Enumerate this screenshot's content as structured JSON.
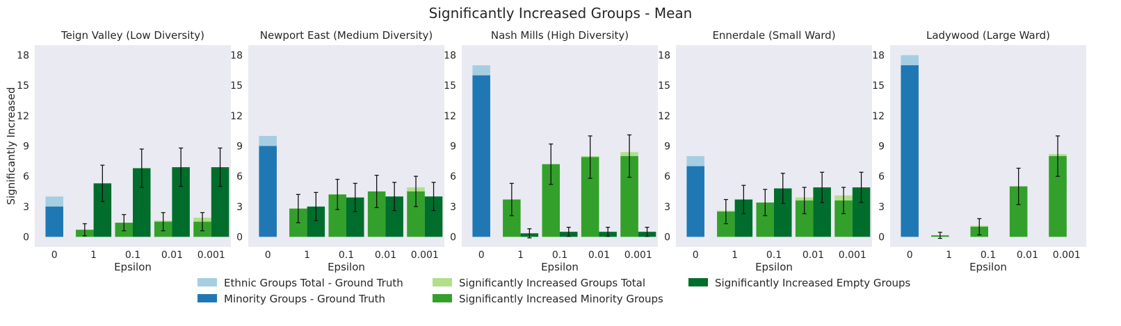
{
  "title": "Significantly Increased Groups  - Mean",
  "legend": {
    "placement": "bottom",
    "items": [
      {
        "label": "Ethnic Groups Total - Ground Truth",
        "color": "#a6cee3"
      },
      {
        "label": "Minority Groups - Ground Truth",
        "color": "#1f78b4"
      },
      {
        "label": "Significantly Increased Groups Total",
        "color": "#b2df8a"
      },
      {
        "label": "Significantly Increased Minority Groups",
        "color": "#33a02c"
      },
      {
        "label": "Significantly Increased Empty Groups",
        "color": "#006d2c"
      }
    ]
  },
  "chart_data": [
    {
      "type": "bar",
      "title": "Teign Valley (Low Diversity)",
      "xlabel": "Epsilon",
      "ylabel": "Significantly Increased",
      "ylim": [
        -1,
        19
      ],
      "yticks": [
        "0",
        "3",
        "6",
        "9",
        "12",
        "15",
        "18"
      ],
      "categories": [
        "0",
        "1",
        "0.1",
        "0.01",
        "0.001"
      ],
      "ground_truth": {
        "total": 4,
        "minority": 3
      },
      "groups": [
        {
          "total": 0.7,
          "minority": 0.7,
          "minority_err": 0.6,
          "empty": 5.3,
          "empty_err": 1.8
        },
        {
          "total": 1.4,
          "minority": 1.4,
          "minority_err": 0.8,
          "empty": 6.8,
          "empty_err": 1.9
        },
        {
          "total": 1.6,
          "minority": 1.5,
          "minority_err": 0.9,
          "empty": 6.9,
          "empty_err": 1.9
        },
        {
          "total": 1.9,
          "minority": 1.5,
          "minority_err": 0.9,
          "empty": 6.9,
          "empty_err": 1.9
        }
      ],
      "grid": false
    },
    {
      "type": "bar",
      "title": "Newport East (Medium Diversity)",
      "xlabel": "Epsilon",
      "ylabel": "",
      "ylim": [
        -1,
        19
      ],
      "yticks": [
        "0",
        "3",
        "6",
        "9",
        "12",
        "15",
        "18"
      ],
      "categories": [
        "0",
        "1",
        "0.1",
        "0.01",
        "0.001"
      ],
      "ground_truth": {
        "total": 10,
        "minority": 9
      },
      "groups": [
        {
          "total": 2.8,
          "minority": 2.8,
          "minority_err": 1.4,
          "empty": 3.0,
          "empty_err": 1.4
        },
        {
          "total": 4.2,
          "minority": 4.2,
          "minority_err": 1.5,
          "empty": 3.9,
          "empty_err": 1.4
        },
        {
          "total": 4.5,
          "minority": 4.5,
          "minority_err": 1.6,
          "empty": 4.0,
          "empty_err": 1.4
        },
        {
          "total": 4.9,
          "minority": 4.5,
          "minority_err": 1.5,
          "empty": 4.0,
          "empty_err": 1.4
        }
      ],
      "grid": false
    },
    {
      "type": "bar",
      "title": "Nash Mills (High Diversity)",
      "xlabel": "Epsilon",
      "ylabel": "",
      "ylim": [
        -1,
        19
      ],
      "yticks": [
        "0",
        "3",
        "6",
        "9",
        "12",
        "15",
        "18"
      ],
      "categories": [
        "0",
        "1",
        "0.1",
        "0.01",
        "0.001"
      ],
      "ground_truth": {
        "total": 17,
        "minority": 16
      },
      "groups": [
        {
          "total": 3.7,
          "minority": 3.7,
          "minority_err": 1.6,
          "empty": 0.35,
          "empty_err": 0.45
        },
        {
          "total": 7.2,
          "minority": 7.2,
          "minority_err": 2.0,
          "empty": 0.5,
          "empty_err": 0.45
        },
        {
          "total": 8.0,
          "minority": 7.9,
          "minority_err": 2.1,
          "empty": 0.5,
          "empty_err": 0.45
        },
        {
          "total": 8.4,
          "minority": 8.0,
          "minority_err": 2.1,
          "empty": 0.5,
          "empty_err": 0.45
        }
      ],
      "grid": false
    },
    {
      "type": "bar",
      "title": "Ennerdale (Small Ward)",
      "xlabel": "Epsilon",
      "ylabel": "",
      "ylim": [
        -1,
        19
      ],
      "yticks": [
        "0",
        "3",
        "6",
        "9",
        "12",
        "15",
        "18"
      ],
      "categories": [
        "0",
        "1",
        "0.1",
        "0.01",
        "0.001"
      ],
      "ground_truth": {
        "total": 8,
        "minority": 7
      },
      "groups": [
        {
          "total": 2.6,
          "minority": 2.5,
          "minority_err": 1.2,
          "empty": 3.7,
          "empty_err": 1.4
        },
        {
          "total": 3.4,
          "minority": 3.4,
          "minority_err": 1.3,
          "empty": 4.8,
          "empty_err": 1.5
        },
        {
          "total": 3.9,
          "minority": 3.6,
          "minority_err": 1.3,
          "empty": 4.9,
          "empty_err": 1.5
        },
        {
          "total": 4.1,
          "minority": 3.6,
          "minority_err": 1.3,
          "empty": 4.9,
          "empty_err": 1.5
        }
      ],
      "grid": false
    },
    {
      "type": "bar",
      "title": "Ladywood (Large Ward)",
      "xlabel": "Epsilon",
      "ylabel": "",
      "ylim": [
        -1,
        19
      ],
      "yticks": [
        "0",
        "3",
        "6",
        "9",
        "12",
        "15",
        "18"
      ],
      "categories": [
        "0",
        "1",
        "0.1",
        "0.01",
        "0.001"
      ],
      "ground_truth": {
        "total": 18,
        "minority": 17
      },
      "groups": [
        {
          "total": 0.15,
          "minority": 0.15,
          "minority_err": 0.3,
          "empty": 0,
          "empty_err": 0
        },
        {
          "total": 1.1,
          "minority": 1.0,
          "minority_err": 0.8,
          "empty": 0,
          "empty_err": 0
        },
        {
          "total": 5.0,
          "minority": 5.0,
          "minority_err": 1.8,
          "empty": 0,
          "empty_err": 0
        },
        {
          "total": 8.2,
          "minority": 8.0,
          "minority_err": 2.0,
          "empty": 0,
          "empty_err": 0
        }
      ],
      "grid": false
    }
  ]
}
